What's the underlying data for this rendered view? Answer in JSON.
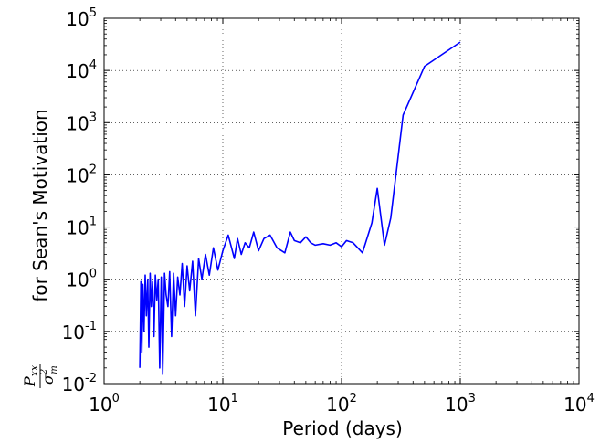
{
  "chart_data": {
    "type": "line",
    "xlabel": "Period (days)",
    "ylabel": {
      "numerator": "P",
      "numerator_sub": "xx",
      "denominator": "σ",
      "denominator_sup": "2",
      "denominator_sub": "m",
      "text": "for Sean's Motivation"
    },
    "x_scale": "log",
    "y_scale": "log",
    "xlim": [
      1,
      10000
    ],
    "ylim": [
      0.01,
      100000
    ],
    "grid": true,
    "x_ticks": [
      {
        "base": "10",
        "exp": "0",
        "value": 1
      },
      {
        "base": "10",
        "exp": "1",
        "value": 10
      },
      {
        "base": "10",
        "exp": "2",
        "value": 100
      },
      {
        "base": "10",
        "exp": "3",
        "value": 1000
      },
      {
        "base": "10",
        "exp": "4",
        "value": 10000
      }
    ],
    "y_ticks": [
      {
        "base": "10",
        "exp": "-2",
        "value": 0.01
      },
      {
        "base": "10",
        "exp": "-1",
        "value": 0.1
      },
      {
        "base": "10",
        "exp": "0",
        "value": 1
      },
      {
        "base": "10",
        "exp": "1",
        "value": 10
      },
      {
        "base": "10",
        "exp": "2",
        "value": 100
      },
      {
        "base": "10",
        "exp": "3",
        "value": 1000
      },
      {
        "base": "10",
        "exp": "4",
        "value": 10000
      },
      {
        "base": "10",
        "exp": "5",
        "value": 100000
      }
    ],
    "series": [
      {
        "color": "#0000ff",
        "x": [
          2.0,
          2.04,
          2.08,
          2.12,
          2.17,
          2.22,
          2.27,
          2.33,
          2.38,
          2.44,
          2.5,
          2.56,
          2.63,
          2.7,
          2.78,
          2.86,
          2.94,
          3.03,
          3.12,
          3.23,
          3.33,
          3.45,
          3.57,
          3.7,
          3.85,
          4.0,
          4.17,
          4.35,
          4.55,
          4.76,
          5.0,
          5.26,
          5.56,
          5.88,
          6.25,
          6.67,
          7.14,
          7.69,
          8.33,
          9.09,
          10.0,
          11.1,
          12.5,
          13.3,
          14.3,
          15.4,
          16.7,
          18.2,
          20.0,
          22.2,
          25.0,
          28.6,
          33.3,
          37.0,
          40.0,
          45.0,
          50.0,
          55.0,
          60.0,
          70.0,
          80.0,
          90.0,
          100,
          110,
          125,
          150,
          180,
          200,
          230,
          260,
          330,
          500,
          1000
        ],
        "y": [
          0.02,
          0.9,
          0.04,
          0.8,
          0.1,
          1.2,
          0.2,
          1.0,
          0.05,
          1.3,
          0.3,
          0.9,
          0.08,
          1.2,
          0.4,
          1.0,
          0.02,
          1.1,
          0.015,
          1.3,
          0.5,
          0.3,
          1.4,
          0.08,
          1.3,
          0.2,
          1.1,
          0.5,
          2.0,
          0.3,
          1.8,
          0.6,
          2.2,
          0.2,
          2.5,
          1.0,
          3.0,
          1.2,
          4.0,
          1.5,
          3.5,
          7.0,
          2.5,
          6.0,
          3.0,
          5.0,
          4.0,
          8.0,
          3.5,
          6.0,
          7.0,
          4.0,
          3.2,
          8.0,
          5.5,
          5.0,
          6.5,
          5.0,
          4.5,
          4.8,
          4.5,
          5.0,
          4.2,
          5.5,
          5.0,
          3.2,
          12.0,
          55.0,
          4.5,
          15.0,
          1400,
          12000,
          35000
        ]
      }
    ]
  }
}
